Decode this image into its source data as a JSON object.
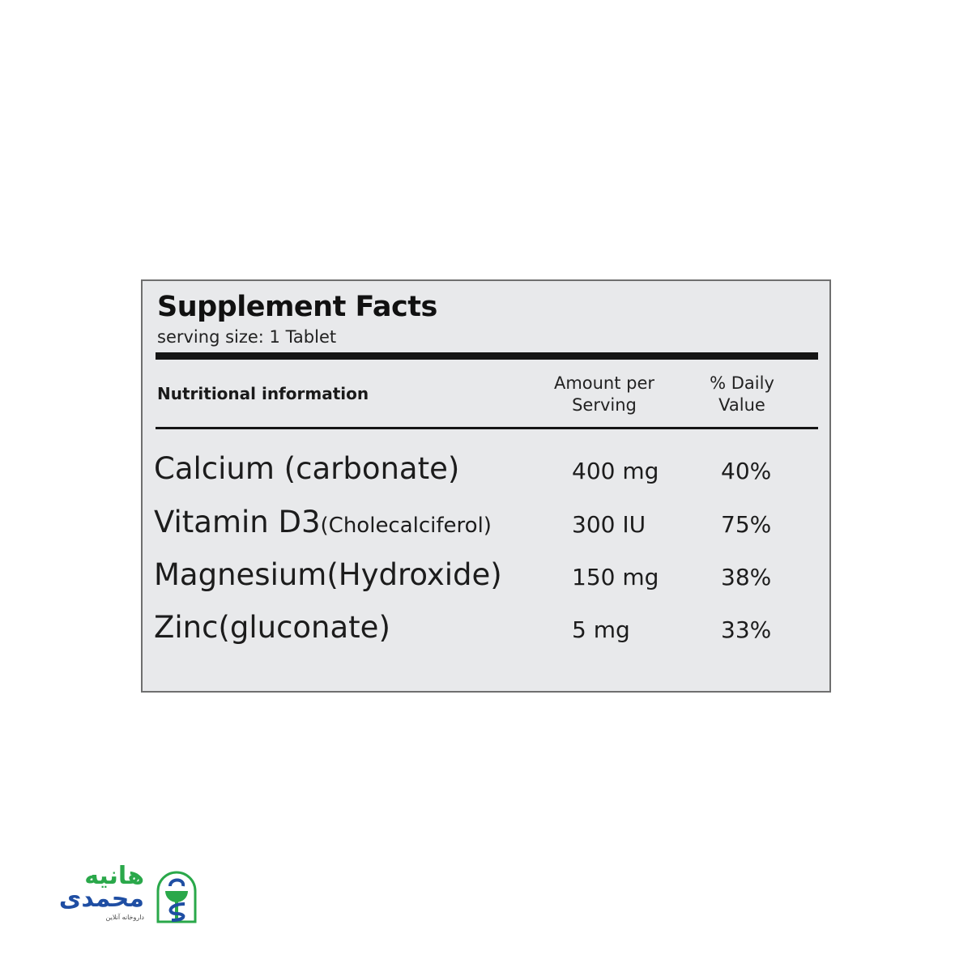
{
  "label": {
    "title": "Supplement Facts",
    "serving_size": "serving size: 1 Tablet",
    "headers": {
      "nutrition": "Nutritional information",
      "amount": "Amount per Serving",
      "daily_value": "% Daily Value"
    },
    "rows": [
      {
        "name": "Calcium (carbonate)",
        "name_small": "",
        "amount": "400 mg",
        "daily_value": "40%"
      },
      {
        "name": "Vitamin D3",
        "name_small": "(Cholecalciferol)",
        "amount": "300 IU",
        "daily_value": "75%"
      },
      {
        "name": "Magnesium(Hydroxide)",
        "name_small": "",
        "amount": "150 mg",
        "daily_value": "38%"
      },
      {
        "name": "Zinc(gluconate)",
        "name_small": "",
        "amount": "5 mg",
        "daily_value": "33%"
      }
    ]
  },
  "logo": {
    "line1": "هانیه",
    "line2": "محمدی",
    "tagline": "داروخانه آنلاین",
    "colors": {
      "green": "#2aa84a",
      "blue": "#1f4ea3"
    }
  }
}
